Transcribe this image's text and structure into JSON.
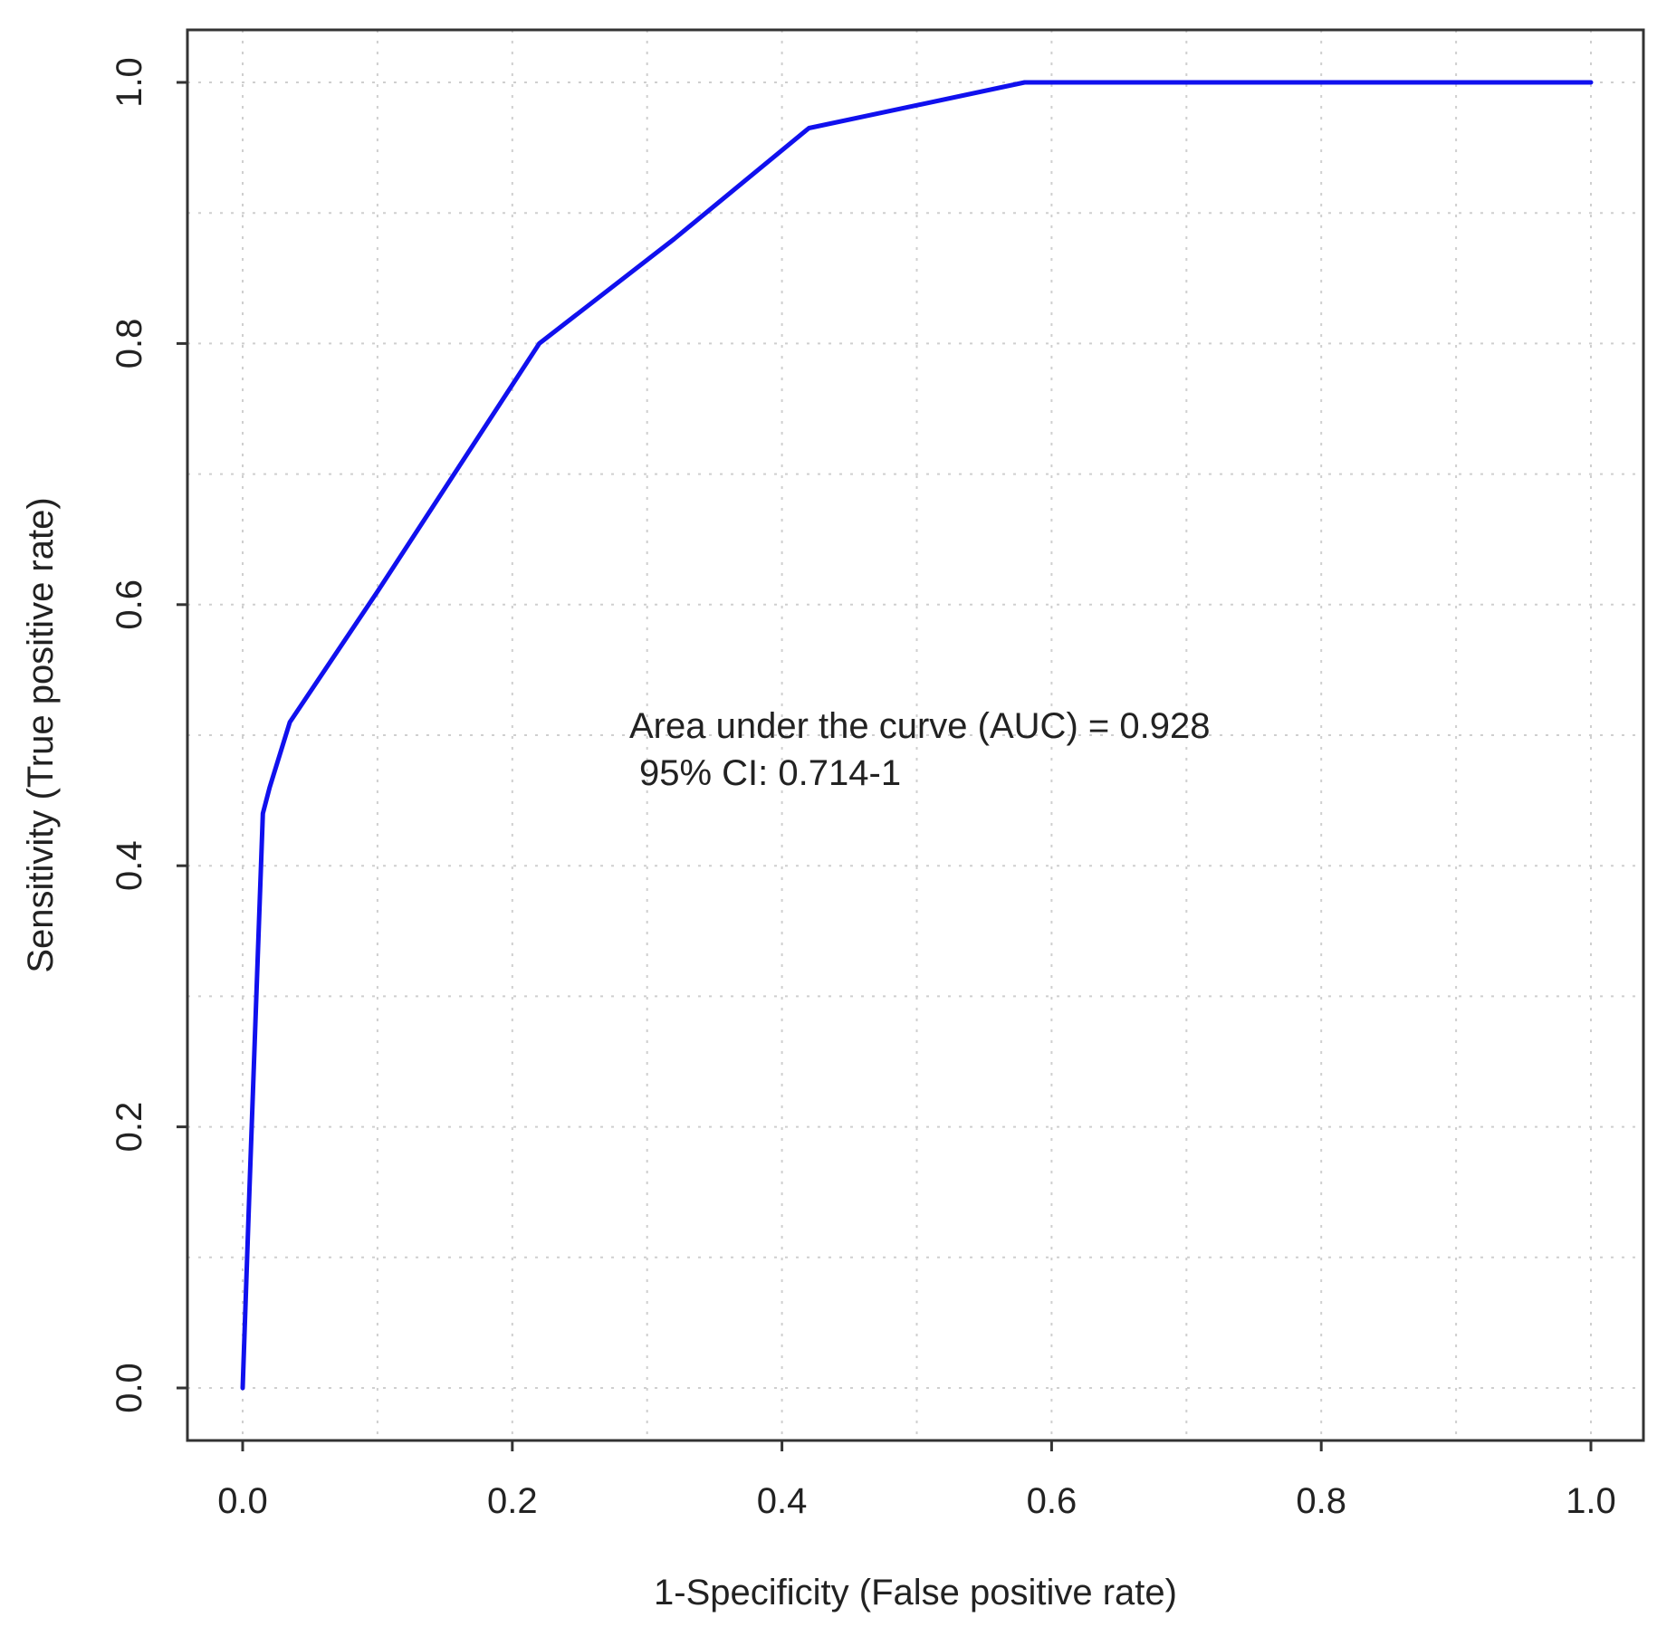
{
  "chart_data": {
    "type": "line",
    "title": "",
    "xlabel": "1-Specificity (False positive rate)",
    "ylabel": "Sensitivity (True positive rate)",
    "xlim": [
      0,
      1
    ],
    "ylim": [
      0,
      1
    ],
    "x_ticks": [
      "0.0",
      "0.2",
      "0.4",
      "0.6",
      "0.8",
      "1.0"
    ],
    "y_ticks": [
      "0.0",
      "0.2",
      "0.4",
      "0.6",
      "0.8",
      "1.0"
    ],
    "grid": true,
    "grid_style": "dotted",
    "series": [
      {
        "color": "#1010ee",
        "points": [
          [
            0.0,
            0.0
          ],
          [
            0.005,
            0.15
          ],
          [
            0.015,
            0.44
          ],
          [
            0.02,
            0.46
          ],
          [
            0.035,
            0.51
          ],
          [
            0.1,
            0.61
          ],
          [
            0.22,
            0.8
          ],
          [
            0.32,
            0.88
          ],
          [
            0.42,
            0.965
          ],
          [
            0.58,
            1.0
          ],
          [
            1.0,
            1.0
          ]
        ]
      }
    ],
    "annotation": {
      "line1": "Area under the curve (AUC) = 0.928",
      "line2": "95% CI: 0.714-1",
      "anchor": [
        0.29,
        0.5
      ]
    }
  }
}
